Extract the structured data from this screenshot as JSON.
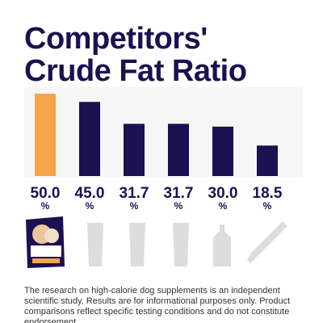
{
  "chart_data": {
    "type": "bar",
    "title": [
      "Competitors'",
      "Crude Fat Ratio"
    ],
    "categories": [
      null,
      null,
      null,
      null,
      null,
      null
    ],
    "values": [
      50.0,
      45.0,
      31.7,
      31.7,
      30.0,
      18.5
    ],
    "value_labels": [
      "50.0",
      "45.0",
      "31.7",
      "31.7",
      "30.0",
      "18.5"
    ],
    "value_units": [
      "%",
      "%",
      "%",
      "%",
      "%",
      "%"
    ],
    "colors": [
      "#f5a54a",
      "#1b1150",
      "#1b1150",
      "#1b1150",
      "#1b1150",
      "#1b1150"
    ],
    "ylim": [
      0,
      50
    ],
    "note": "The research on high-calorie dog supplements is an independent scientific study. Results are for informational purposes only. Product comparisons reflect specific testing conditions and do not constitute endorsement."
  }
}
